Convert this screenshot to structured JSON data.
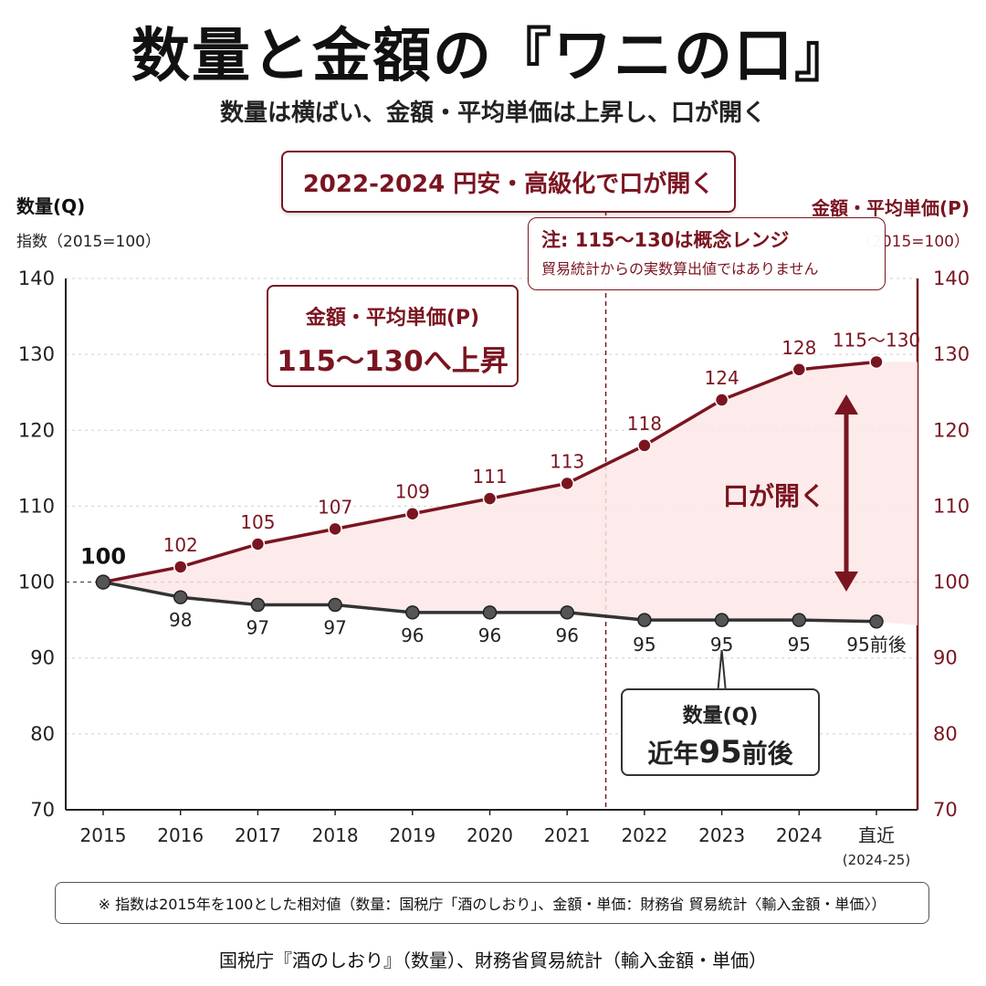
{
  "title": "数量と金額の『ワニの口』",
  "subtitle": "数量は横ばい、金額・平均単価は上昇し、口が開く",
  "banner": "2022-2024 円安・高級化で口が開く",
  "left_axis": {
    "title": "数量(Q)",
    "subtitle": "指数（2015=100）"
  },
  "right_axis": {
    "title": "金額・平均単価(P)",
    "subtitle": "（2015=100）"
  },
  "note": {
    "title": "注: 115〜130は概念レンジ",
    "body": "貿易統計からの実数算出値ではありません"
  },
  "callout_price": {
    "line1": "金額・平均単価(P)",
    "line2": "115〜130へ上昇"
  },
  "callout_quantity": {
    "line1": "数量(Q)",
    "line2_prefix": "近年",
    "line2_number": "95",
    "line2_suffix": "前後"
  },
  "gap_label": "口が開く",
  "footnote": "※ 指数は2015年を100とした相対値（数量：国税庁「酒のしおり」、金額・単価：財務省 貿易統計〈輸入金額・単価〉）",
  "source": "国税庁『酒のしおり』（数量）、財務省貿易統計（輸入金額・単価）",
  "colors": {
    "price": "#7a1520",
    "quantity": "#333333",
    "fill": "#fde6e6"
  },
  "chart_data": {
    "type": "line",
    "categories": [
      "2015",
      "2016",
      "2017",
      "2018",
      "2019",
      "2020",
      "2021",
      "2022",
      "2023",
      "2024",
      "直近"
    ],
    "category_sublabels": [
      "",
      "",
      "",
      "",
      "",
      "",
      "",
      "",
      "",
      "",
      "(2024-25)"
    ],
    "ylim": [
      70,
      140
    ],
    "yticks": [
      70,
      80,
      90,
      100,
      110,
      120,
      130,
      140
    ],
    "divider_after": "2021",
    "series": [
      {
        "name": "金額・平均単価(P)",
        "values": [
          100,
          102,
          105,
          107,
          109,
          111,
          113,
          118,
          124,
          128,
          129
        ],
        "labels": [
          "100",
          "102",
          "105",
          "107",
          "109",
          "111",
          "113",
          "118",
          "124",
          "128",
          "115〜130"
        ]
      },
      {
        "name": "数量(Q)",
        "values": [
          100,
          98,
          97,
          97,
          96,
          96,
          96,
          95,
          95,
          95,
          94.8
        ],
        "labels": [
          "",
          "98",
          "97",
          "97",
          "96",
          "96",
          "96",
          "95",
          "95",
          "95",
          "95前後"
        ]
      }
    ]
  }
}
